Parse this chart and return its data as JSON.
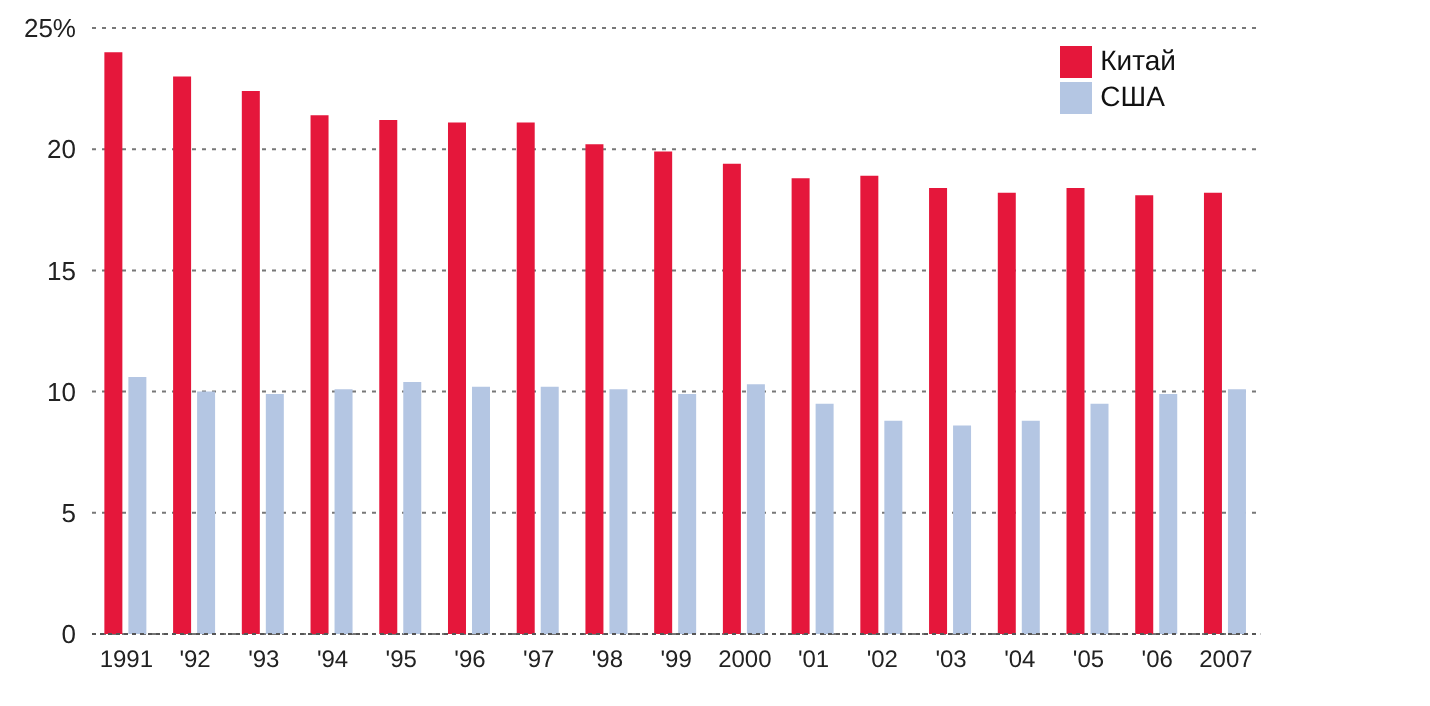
{
  "chart_data": {
    "type": "bar",
    "categories": [
      "1991",
      "'92",
      "'93",
      "'94",
      "'95",
      "'96",
      "'97",
      "'98",
      "'99",
      "2000",
      "'01",
      "'02",
      "'03",
      "'04",
      "'05",
      "'06",
      "2007"
    ],
    "series": [
      {
        "name": "Китай",
        "color": "#e5173b",
        "values": [
          24.0,
          23.0,
          22.4,
          21.4,
          21.2,
          21.1,
          21.1,
          20.2,
          19.9,
          19.4,
          18.8,
          18.9,
          18.4,
          18.2,
          18.4,
          18.1,
          18.2
        ]
      },
      {
        "name": "США",
        "color": "#b4c6e3",
        "values": [
          10.6,
          10.0,
          9.9,
          10.1,
          10.4,
          10.2,
          10.2,
          10.1,
          9.9,
          10.3,
          9.5,
          8.8,
          8.6,
          8.8,
          9.5,
          9.9,
          10.1
        ]
      }
    ],
    "ylim": [
      0,
      25
    ],
    "yticks": [
      0,
      5,
      10,
      15,
      20,
      {
        "value": 25,
        "label": "25%"
      }
    ],
    "grid": "y",
    "legend": "top right"
  }
}
